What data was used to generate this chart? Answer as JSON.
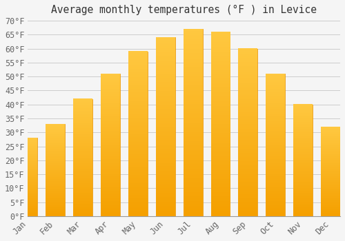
{
  "title": "Average monthly temperatures (°F ) in Levice",
  "months": [
    "Jan",
    "Feb",
    "Mar",
    "Apr",
    "May",
    "Jun",
    "Jul",
    "Aug",
    "Sep",
    "Oct",
    "Nov",
    "Dec"
  ],
  "values": [
    28,
    33,
    42,
    51,
    59,
    64,
    67,
    66,
    60,
    51,
    40,
    32
  ],
  "bar_color_top": "#FFC020",
  "bar_color_bottom": "#F5A800",
  "bar_edge_color": "#E89000",
  "background_color": "#f5f5f5",
  "grid_color": "#cccccc",
  "ylim": [
    0,
    70
  ],
  "yticks": [
    0,
    5,
    10,
    15,
    20,
    25,
    30,
    35,
    40,
    45,
    50,
    55,
    60,
    65,
    70
  ],
  "ylabel_suffix": "°F",
  "title_fontsize": 10.5,
  "tick_fontsize": 8.5,
  "font_family": "monospace"
}
